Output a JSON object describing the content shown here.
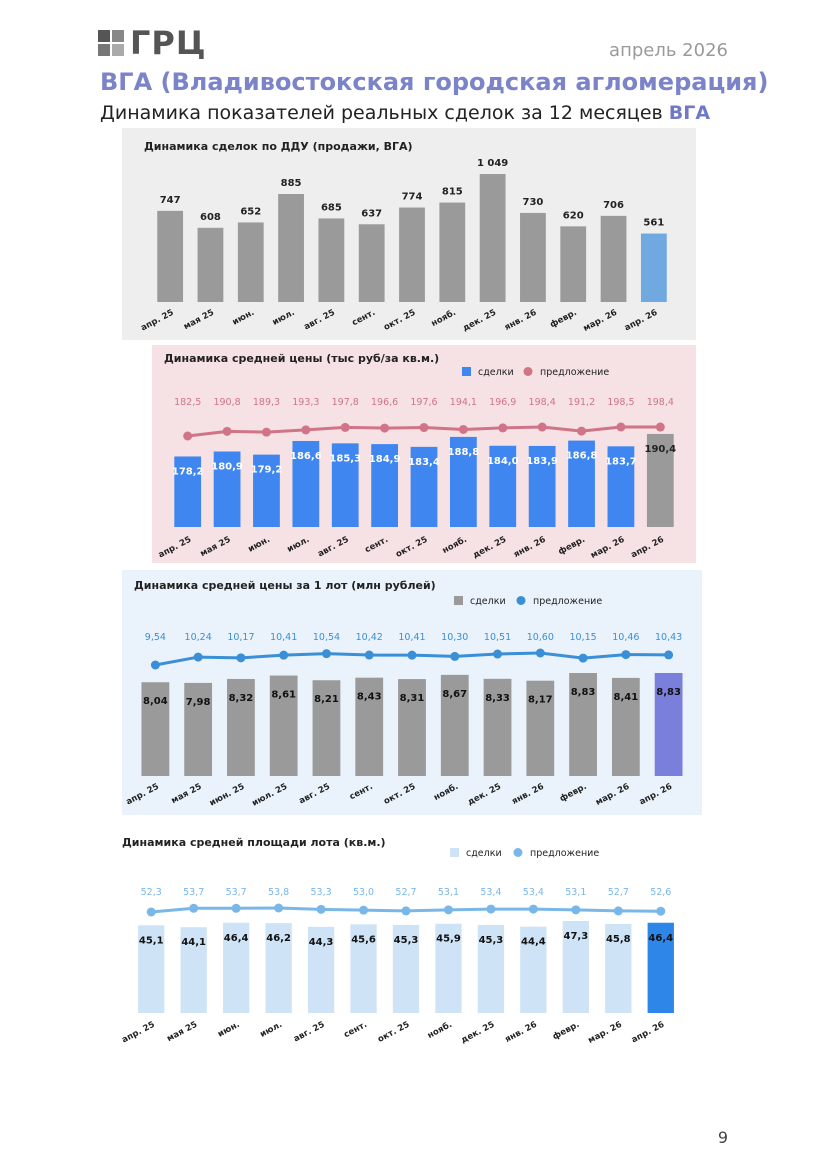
{
  "header": {
    "logo_text": "ГРЦ",
    "date": "апрель 2026",
    "title": "ВГА (Владивостокская городская агломерация)",
    "subtitle_prefix": "Динамика показателей реальных сделок за 12 месяцев ",
    "subtitle_accent": "ВГА"
  },
  "page_number": "9",
  "colors": {
    "accent_blue": "#6f79c8",
    "gray_bar": "#9a9a9a",
    "bar_blue": "#3f86f0",
    "pink_line": "#d07487",
    "teal_line": "#3a8fd6",
    "light_blue_bar": "#cfe3f7",
    "light_line": "#79b7e8",
    "purple_bar": "#7b7fdc",
    "sky_bar": "#6fa9e0",
    "strong_blue": "#2e86e8"
  },
  "chart_data": [
    {
      "type": "bar",
      "title": "Динамика сделок  по ДДУ (продажи, ВГА)",
      "categories": [
        "апр. 25",
        "мая 25",
        "июн.",
        "июл.",
        "авг. 25",
        "сент.",
        "окт. 25",
        "нояб.",
        "дек. 25",
        "янв. 26",
        "февр.",
        "мар. 26",
        "апр. 26"
      ],
      "values": [
        747,
        608,
        652,
        885,
        685,
        637,
        774,
        815,
        1049,
        730,
        620,
        706,
        561
      ],
      "value_labels": [
        "747",
        "608",
        "652",
        "885",
        "685",
        "637",
        "774",
        "815",
        "1 049",
        "730",
        "620",
        "706",
        "561"
      ],
      "ylim": [
        0,
        1100
      ]
    },
    {
      "type": "bar",
      "title": "Динамика средней цены (тыс руб/за кв.м.)",
      "categories": [
        "апр. 25",
        "мая 25",
        "июн.",
        "июл.",
        "авг. 25",
        "сент.",
        "окт. 25",
        "нояб.",
        "дек. 25",
        "янв. 26",
        "февр.",
        "мар. 26",
        "апр. 26"
      ],
      "legend": [
        "сделки",
        "предложение"
      ],
      "series": [
        {
          "name": "сделки",
          "type": "bar",
          "values": [
            178.2,
            180.9,
            179.2,
            186.6,
            185.3,
            184.9,
            183.4,
            188.8,
            184.0,
            183.9,
            186.8,
            183.7,
            190.4
          ],
          "labels": [
            "178,2",
            "180,9",
            "179,2",
            "186,6",
            "185,3",
            "184,9",
            "183,4",
            "188,8",
            "184,0",
            "183,9",
            "186,8",
            "183,7",
            "190,4"
          ]
        },
        {
          "name": "предложение",
          "type": "line",
          "values": [
            182.5,
            190.8,
            189.3,
            193.3,
            197.8,
            196.6,
            197.6,
            194.1,
            196.9,
            198.4,
            191.2,
            198.5,
            198.4
          ],
          "labels": [
            "182,5",
            "190,8",
            "189,3",
            "193,3",
            "197,8",
            "196,6",
            "197,6",
            "194,1",
            "196,9",
            "198,4",
            "191,2",
            "198,5",
            "198,4"
          ]
        }
      ]
    },
    {
      "type": "bar",
      "title": "Динамика средней цены за 1 лот (млн рублей)",
      "categories": [
        "апр. 25",
        "мая 25",
        "июн. 25",
        "июл. 25",
        "авг. 25",
        "сент.",
        "окт. 25",
        "нояб.",
        "дек. 25",
        "янв. 26",
        "февр.",
        "мар. 26",
        "апр. 26"
      ],
      "legend": [
        "сделки",
        "предложение"
      ],
      "series": [
        {
          "name": "сделки",
          "type": "bar",
          "values": [
            8.04,
            7.98,
            8.32,
            8.61,
            8.21,
            8.43,
            8.31,
            8.67,
            8.33,
            8.17,
            8.83,
            8.41,
            8.83
          ],
          "labels": [
            "8,04",
            "7,98",
            "8,32",
            "8,61",
            "8,21",
            "8,43",
            "8,31",
            "8,67",
            "8,33",
            "8,17",
            "8,83",
            "8,41",
            "8,83"
          ]
        },
        {
          "name": "предложение",
          "type": "line",
          "values": [
            9.54,
            10.24,
            10.17,
            10.41,
            10.54,
            10.42,
            10.41,
            10.3,
            10.51,
            10.6,
            10.15,
            10.46,
            10.43
          ],
          "labels": [
            "9,54",
            "10,24",
            "10,17",
            "10,41",
            "10,54",
            "10,42",
            "10,41",
            "10,30",
            "10,51",
            "10,60",
            "10,15",
            "10,46",
            "10,43"
          ]
        }
      ]
    },
    {
      "type": "bar",
      "title": "Динамика средней площади лота (кв.м.)",
      "categories": [
        "апр. 25",
        "мая 25",
        "июн.",
        "июл.",
        "авг. 25",
        "сент.",
        "окт. 25",
        "нояб.",
        "дек. 25",
        "янв. 26",
        "февр.",
        "мар. 26",
        "апр. 26"
      ],
      "legend": [
        "сделки",
        "предложение"
      ],
      "series": [
        {
          "name": "сделки",
          "type": "bar",
          "values": [
            45.1,
            44.1,
            46.4,
            46.2,
            44.3,
            45.6,
            45.3,
            45.9,
            45.3,
            44.4,
            47.3,
            45.8,
            46.4
          ],
          "labels": [
            "45,1",
            "44,1",
            "46,4",
            "46,2",
            "44,3",
            "45,6",
            "45,3",
            "45,9",
            "45,3",
            "44,4",
            "47,3",
            "45,8",
            "46,4"
          ]
        },
        {
          "name": "предложение",
          "type": "line",
          "values": [
            52.3,
            53.7,
            53.7,
            53.8,
            53.3,
            53.0,
            52.7,
            53.1,
            53.4,
            53.4,
            53.1,
            52.7,
            52.6
          ],
          "labels": [
            "52,3",
            "53,7",
            "53,7",
            "53,8",
            "53,3",
            "53,0",
            "52,7",
            "53,1",
            "53,4",
            "53,4",
            "53,1",
            "52,7",
            "52,6"
          ]
        }
      ]
    }
  ]
}
